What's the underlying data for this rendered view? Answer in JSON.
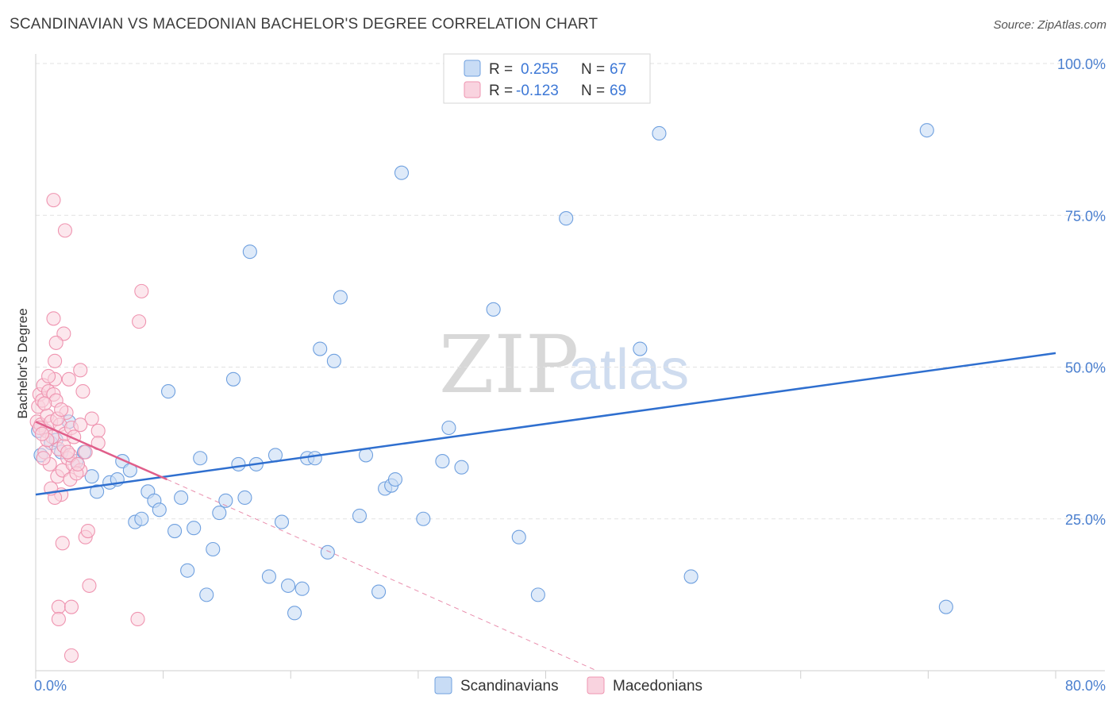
{
  "title": "SCANDINAVIAN VS MACEDONIAN BACHELOR'S DEGREE CORRELATION CHART",
  "source": "Source: ZipAtlas.com",
  "watermark": {
    "zip": "ZIP",
    "atlas": "atlas"
  },
  "colors": {
    "scandinavians": "#6fa0df",
    "scandinavians_fill": "#c8dcf5",
    "scandinavians_line": "#2f6fcf",
    "macedonians": "#ef94b0",
    "macedonians_fill": "#f9d3df",
    "macedonians_line": "#e05e8a",
    "tick_text": "#4a7fcf",
    "grid": "#e2e2e2"
  },
  "legend": {
    "rows": [
      {
        "r_label": "R =",
        "r_value": "0.255",
        "n_label": "N =",
        "n_value": "67"
      },
      {
        "r_label": "R =",
        "r_value": "-0.123",
        "n_label": "N =",
        "n_value": "69"
      }
    ]
  },
  "chart_data": {
    "type": "scatter",
    "title": "SCANDINAVIAN VS MACEDONIAN BACHELOR'S DEGREE CORRELATION CHART",
    "xlabel": "",
    "ylabel": "Bachelor's Degree",
    "xlim": [
      0,
      80
    ],
    "ylim": [
      0,
      100
    ],
    "x_ticks": [
      "0.0%",
      "80.0%"
    ],
    "y_ticks": [
      "25.0%",
      "50.0%",
      "75.0%",
      "100.0%"
    ],
    "y_tick_values": [
      25,
      50,
      75,
      100
    ],
    "grid": true,
    "legend_position": "top-center",
    "series": [
      {
        "name": "Scandinavians",
        "r": 0.255,
        "n": 67,
        "trend": {
          "x": [
            0,
            80
          ],
          "y": [
            29.0,
            52.3
          ]
        },
        "points": [
          [
            0.4,
            35.5
          ],
          [
            0.8,
            39.5
          ],
          [
            1.2,
            37.5
          ],
          [
            1.6,
            38.0
          ],
          [
            2.0,
            36.0
          ],
          [
            2.6,
            41.0
          ],
          [
            3.2,
            34.5
          ],
          [
            3.8,
            36.0
          ],
          [
            4.4,
            32.0
          ],
          [
            4.8,
            29.5
          ],
          [
            5.8,
            31.0
          ],
          [
            6.4,
            31.5
          ],
          [
            6.8,
            34.5
          ],
          [
            7.4,
            33.0
          ],
          [
            7.8,
            24.5
          ],
          [
            8.3,
            25.0
          ],
          [
            8.8,
            29.5
          ],
          [
            9.3,
            28.0
          ],
          [
            9.7,
            26.5
          ],
          [
            10.4,
            46.0
          ],
          [
            10.9,
            23.0
          ],
          [
            11.4,
            28.5
          ],
          [
            11.9,
            16.5
          ],
          [
            12.4,
            23.5
          ],
          [
            12.9,
            35.0
          ],
          [
            13.4,
            12.5
          ],
          [
            13.9,
            20.0
          ],
          [
            14.4,
            26.0
          ],
          [
            14.9,
            28.0
          ],
          [
            15.5,
            48.0
          ],
          [
            15.9,
            34.0
          ],
          [
            16.4,
            28.5
          ],
          [
            16.8,
            69.0
          ],
          [
            17.3,
            34.0
          ],
          [
            18.3,
            15.5
          ],
          [
            18.8,
            35.5
          ],
          [
            19.3,
            24.5
          ],
          [
            19.8,
            14.0
          ],
          [
            20.3,
            9.5
          ],
          [
            20.9,
            13.5
          ],
          [
            21.3,
            35.0
          ],
          [
            21.9,
            35.0
          ],
          [
            22.3,
            53.0
          ],
          [
            22.9,
            19.5
          ],
          [
            23.4,
            51.0
          ],
          [
            23.9,
            61.5
          ],
          [
            25.4,
            25.5
          ],
          [
            25.9,
            35.5
          ],
          [
            26.9,
            13.0
          ],
          [
            27.4,
            30.0
          ],
          [
            27.9,
            30.5
          ],
          [
            28.2,
            31.5
          ],
          [
            28.7,
            82.0
          ],
          [
            30.4,
            25.0
          ],
          [
            31.9,
            34.5
          ],
          [
            32.4,
            40.0
          ],
          [
            33.4,
            33.5
          ],
          [
            35.9,
            59.5
          ],
          [
            37.9,
            22.0
          ],
          [
            39.4,
            12.5
          ],
          [
            41.6,
            74.5
          ],
          [
            47.4,
            53.0
          ],
          [
            48.9,
            88.5
          ],
          [
            51.4,
            15.5
          ],
          [
            69.9,
            89.0
          ],
          [
            71.4,
            10.5
          ],
          [
            0.2,
            39.5
          ]
        ]
      },
      {
        "name": "Macedonians",
        "r": -0.123,
        "n": 69,
        "trend": {
          "x": [
            0,
            10.3
          ],
          "y": [
            41.0,
            31.5
          ]
        },
        "trend_extension": {
          "x": [
            10.3,
            44.0
          ],
          "y": [
            31.5,
            0
          ]
        },
        "points": [
          [
            0.1,
            41.0
          ],
          [
            0.2,
            43.5
          ],
          [
            0.3,
            45.5
          ],
          [
            0.4,
            40.5
          ],
          [
            0.5,
            44.5
          ],
          [
            0.6,
            47.0
          ],
          [
            0.7,
            36.0
          ],
          [
            0.8,
            39.5
          ],
          [
            0.9,
            42.0
          ],
          [
            1.0,
            46.0
          ],
          [
            1.1,
            34.0
          ],
          [
            1.2,
            41.0
          ],
          [
            1.3,
            38.5
          ],
          [
            1.4,
            45.5
          ],
          [
            1.5,
            48.0
          ],
          [
            1.6,
            44.5
          ],
          [
            1.7,
            32.0
          ],
          [
            1.8,
            36.5
          ],
          [
            1.9,
            40.5
          ],
          [
            2.0,
            29.0
          ],
          [
            2.1,
            33.0
          ],
          [
            2.2,
            37.0
          ],
          [
            2.3,
            39.0
          ],
          [
            2.4,
            42.5
          ],
          [
            2.5,
            35.0
          ],
          [
            2.6,
            48.0
          ],
          [
            2.7,
            31.5
          ],
          [
            2.8,
            40.0
          ],
          [
            2.9,
            34.0
          ],
          [
            3.0,
            38.5
          ],
          [
            1.4,
            77.5
          ],
          [
            2.3,
            72.5
          ],
          [
            8.3,
            62.5
          ],
          [
            8.1,
            57.5
          ],
          [
            1.4,
            58.0
          ],
          [
            2.2,
            55.5
          ],
          [
            1.6,
            54.0
          ],
          [
            1.5,
            51.0
          ],
          [
            3.5,
            49.5
          ],
          [
            3.7,
            46.0
          ],
          [
            4.4,
            41.5
          ],
          [
            4.9,
            39.5
          ],
          [
            4.9,
            37.5
          ],
          [
            3.9,
            36.0
          ],
          [
            3.5,
            33.0
          ],
          [
            2.7,
            35.5
          ],
          [
            3.9,
            22.0
          ],
          [
            4.1,
            23.0
          ],
          [
            2.1,
            21.0
          ],
          [
            4.2,
            14.0
          ],
          [
            1.8,
            10.5
          ],
          [
            2.8,
            10.5
          ],
          [
            1.8,
            8.5
          ],
          [
            8.0,
            8.5
          ],
          [
            2.8,
            2.5
          ],
          [
            0.6,
            35.0
          ],
          [
            0.9,
            38.0
          ],
          [
            1.5,
            28.5
          ],
          [
            3.2,
            32.5
          ],
          [
            0.3,
            40.0
          ],
          [
            0.7,
            44.0
          ],
          [
            1.0,
            48.5
          ],
          [
            1.2,
            30.0
          ],
          [
            2.5,
            36.0
          ],
          [
            3.3,
            34.0
          ],
          [
            0.5,
            39.0
          ],
          [
            1.7,
            41.5
          ],
          [
            3.5,
            40.5
          ],
          [
            2.0,
            43.0
          ]
        ]
      }
    ]
  }
}
